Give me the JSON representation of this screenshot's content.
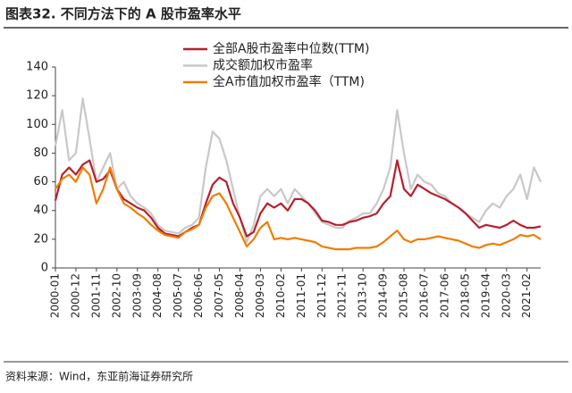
{
  "header": {
    "title": "图表32. 不同方法下的 A 股市盈率水平"
  },
  "chart_data": {
    "type": "line",
    "categories": [
      "2000-01",
      null,
      null,
      "2000-12",
      null,
      null,
      "2001-11",
      null,
      null,
      "2002-10",
      null,
      null,
      "2003-09",
      null,
      null,
      "2004-08",
      null,
      null,
      "2005-07",
      null,
      null,
      "2006-06",
      null,
      null,
      "2007-05",
      null,
      null,
      "2008-04",
      null,
      null,
      "2009-03",
      null,
      null,
      "2010-02",
      null,
      null,
      "2011-01",
      null,
      null,
      "2011-12",
      null,
      null,
      "2012-11",
      null,
      null,
      "2013-10",
      null,
      null,
      "2014-09",
      null,
      null,
      "2015-08",
      null,
      null,
      "2016-07",
      null,
      null,
      "2017-06",
      null,
      null,
      "2018-05",
      null,
      null,
      "2019-04",
      null,
      null,
      "2020-03",
      null,
      null,
      "2021-02",
      null,
      null
    ],
    "series": [
      {
        "name": "全部A股市盈率中位数(TTM)",
        "color": "#b5202e",
        "values": [
          47,
          65,
          70,
          65,
          72,
          75,
          60,
          62,
          68,
          55,
          48,
          45,
          42,
          40,
          35,
          28,
          24,
          23,
          22,
          25,
          28,
          30,
          45,
          58,
          63,
          60,
          45,
          35,
          22,
          25,
          38,
          45,
          42,
          45,
          40,
          48,
          48,
          45,
          40,
          33,
          32,
          30,
          30,
          32,
          33,
          35,
          36,
          38,
          45,
          50,
          75,
          55,
          50,
          58,
          55,
          52,
          50,
          48,
          45,
          42,
          38,
          33,
          28,
          30,
          29,
          28,
          30,
          33,
          30,
          28,
          28,
          29
        ]
      },
      {
        "name": "成交额加权市盈率",
        "color": "#c8c8c8",
        "values": [
          85,
          110,
          75,
          80,
          118,
          90,
          60,
          70,
          80,
          55,
          60,
          50,
          45,
          42,
          38,
          30,
          26,
          25,
          24,
          28,
          30,
          35,
          70,
          95,
          90,
          75,
          55,
          35,
          18,
          30,
          50,
          55,
          50,
          55,
          45,
          55,
          50,
          45,
          38,
          32,
          30,
          28,
          28,
          33,
          35,
          38,
          38,
          45,
          55,
          70,
          110,
          80,
          55,
          65,
          60,
          58,
          52,
          50,
          45,
          42,
          38,
          35,
          32,
          40,
          45,
          42,
          50,
          55,
          65,
          48,
          70,
          60
        ]
      },
      {
        "name": "全A市值加权市盈率（TTM)",
        "color": "#f07d00",
        "values": [
          55,
          62,
          65,
          60,
          70,
          65,
          45,
          55,
          70,
          55,
          45,
          42,
          38,
          35,
          30,
          26,
          23,
          22,
          21,
          25,
          27,
          30,
          42,
          50,
          52,
          45,
          35,
          25,
          15,
          20,
          28,
          32,
          20,
          21,
          20,
          21,
          20,
          19,
          18,
          15,
          14,
          13,
          13,
          13,
          14,
          14,
          14,
          15,
          18,
          22,
          26,
          20,
          18,
          20,
          20,
          21,
          22,
          21,
          20,
          19,
          17,
          15,
          14,
          16,
          17,
          16,
          18,
          20,
          23,
          22,
          23,
          20
        ]
      }
    ],
    "ylim": [
      0,
      140
    ],
    "yticks": [
      0,
      20,
      40,
      60,
      80,
      100,
      120,
      140
    ],
    "grid": false
  },
  "footer": {
    "source": "资料来源：Wind，东亚前海证券研究所"
  }
}
